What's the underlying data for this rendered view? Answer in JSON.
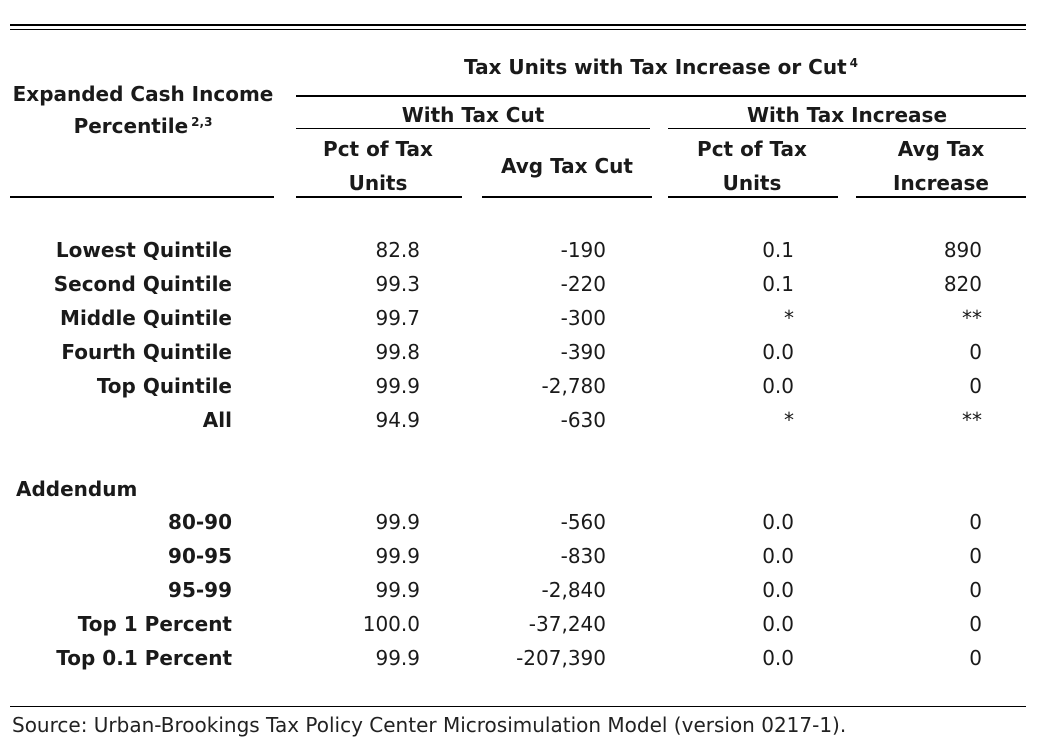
{
  "header": {
    "stub_title": "Expanded Cash Income",
    "stub_title_line2": "Percentile",
    "stub_title_sup": "2,3",
    "group_title": "Tax Units with Tax Increase or Cut",
    "group_title_sup": "4",
    "cut_group": "With Tax Cut",
    "increase_group": "With Tax Increase",
    "col_cut_pct_1": "Pct of Tax",
    "col_cut_pct_2": "Units",
    "col_cut_avg": "Avg Tax Cut",
    "col_inc_pct_1": "Pct of Tax",
    "col_inc_pct_2": "Units",
    "col_inc_avg_1": "Avg Tax",
    "col_inc_avg_2": "Increase"
  },
  "rows": [
    {
      "label": "Lowest Quintile",
      "cut_pct": "82.8",
      "cut_avg": "-190",
      "inc_pct": "0.1",
      "inc_avg": "890"
    },
    {
      "label": "Second Quintile",
      "cut_pct": "99.3",
      "cut_avg": "-220",
      "inc_pct": "0.1",
      "inc_avg": "820"
    },
    {
      "label": "Middle Quintile",
      "cut_pct": "99.7",
      "cut_avg": "-300",
      "inc_pct": "*",
      "inc_avg": "**"
    },
    {
      "label": "Fourth Quintile",
      "cut_pct": "99.8",
      "cut_avg": "-390",
      "inc_pct": "0.0",
      "inc_avg": "0"
    },
    {
      "label": "Top Quintile",
      "cut_pct": "99.9",
      "cut_avg": "-2,780",
      "inc_pct": "0.0",
      "inc_avg": "0"
    },
    {
      "label": "All",
      "cut_pct": "94.9",
      "cut_avg": "-630",
      "inc_pct": "*",
      "inc_avg": "**"
    }
  ],
  "addendum_label": "Addendum",
  "addendum_rows": [
    {
      "label": "80-90",
      "cut_pct": "99.9",
      "cut_avg": "-560",
      "inc_pct": "0.0",
      "inc_avg": "0"
    },
    {
      "label": "90-95",
      "cut_pct": "99.9",
      "cut_avg": "-830",
      "inc_pct": "0.0",
      "inc_avg": "0"
    },
    {
      "label": "95-99",
      "cut_pct": "99.9",
      "cut_avg": "-2,840",
      "inc_pct": "0.0",
      "inc_avg": "0"
    },
    {
      "label": "Top 1 Percent",
      "cut_pct": "100.0",
      "cut_avg": "-37,240",
      "inc_pct": "0.0",
      "inc_avg": "0"
    },
    {
      "label": "Top 0.1 Percent",
      "cut_pct": "99.9",
      "cut_avg": "-207,390",
      "inc_pct": "0.0",
      "inc_avg": "0"
    }
  ],
  "source": "Source: Urban-Brookings Tax Policy Center Microsimulation Model (version 0217-1)."
}
